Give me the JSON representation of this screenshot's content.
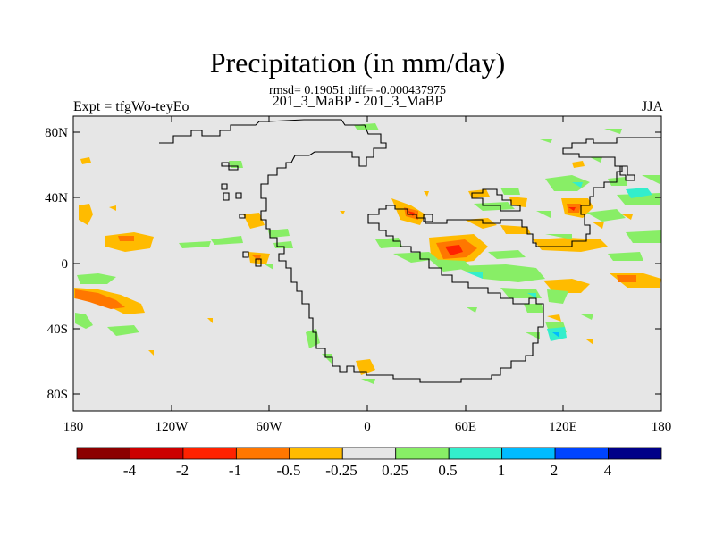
{
  "title": "Precipitation (in mm/day)",
  "stats_text": "rmsd= 0.19051 diff= -0.000437975",
  "subtitle": "201_3_MaBP - 201_3_MaBP",
  "experiment": "Expt = tfgWo-teyEo",
  "season": "JJA",
  "lon_ticks": [
    "180",
    "120W",
    "60W",
    "0",
    "60E",
    "120E",
    "180"
  ],
  "lat_ticks": [
    "80N",
    "40N",
    "0",
    "40S",
    "80S"
  ],
  "colorbar": {
    "labels": [
      "-4",
      "-2",
      "-1",
      "-0.5",
      "-0.25",
      "0.25",
      "0.5",
      "1",
      "2",
      "4"
    ],
    "colors": [
      "#8b0000",
      "#cc0000",
      "#ff2200",
      "#ff7700",
      "#ffbb00",
      "#e6e6e6",
      "#88ee66",
      "#33eecc",
      "#00bbff",
      "#0044ff",
      "#000088"
    ]
  },
  "colors": {
    "background": "#e6e6e6",
    "coast": "#000000"
  }
}
